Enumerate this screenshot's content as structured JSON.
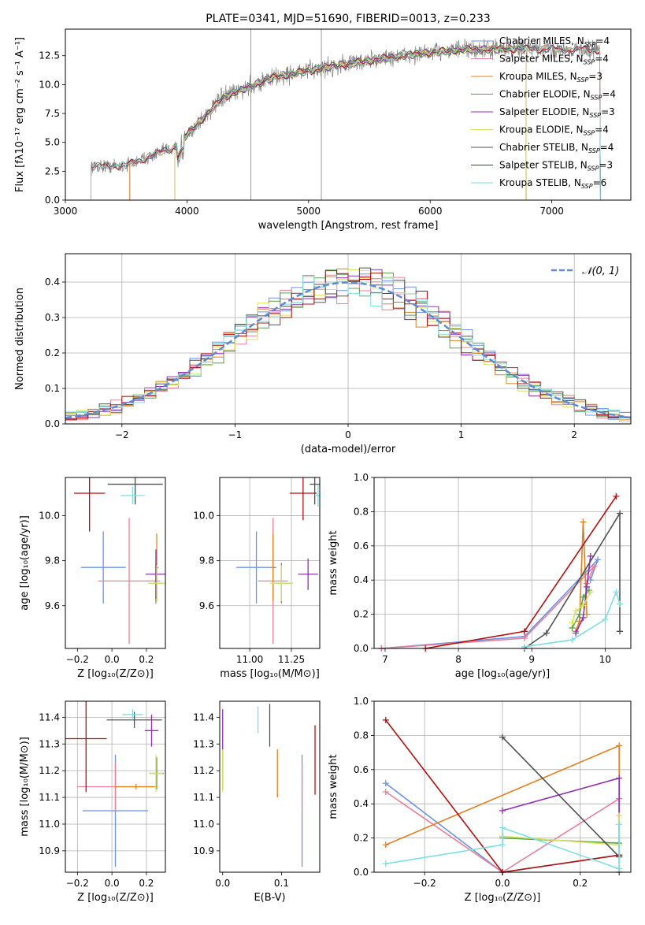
{
  "colors": {
    "palette": [
      "#6c94e0",
      "#e8809a",
      "#e08020",
      "#5a9e50",
      "#9030b0",
      "#d8e060",
      "#505050",
      "#b01010",
      "#80dde0",
      "#808080"
    ],
    "gauss": "#5b8bd6"
  },
  "chart_data": [
    {
      "type": "line",
      "title": "PLATE=0341, MJD=51690, FIBERID=0013, z=0.233",
      "xlabel": "wavelength [Angstrom, rest frame]",
      "ylabel": "Flux [fλ10⁻¹⁷ erg cm⁻² s⁻¹ A⁻¹]",
      "xlim": [
        3000,
        7650
      ],
      "ylim": [
        0,
        14.8
      ],
      "xticks": [
        "3000",
        "4000",
        "5000",
        "6000",
        "7000"
      ],
      "yticks": [
        "0.0",
        "2.5",
        "5.0",
        "7.5",
        "10.0",
        "12.5"
      ],
      "continuum": {
        "x": [
          3210,
          3500,
          3900,
          4300,
          4700,
          5200,
          5700,
          6200,
          6700,
          7400
        ],
        "y": [
          2.9,
          3.0,
          4.6,
          8.9,
          10.6,
          11.6,
          12.4,
          13.0,
          13.1,
          13.0
        ]
      },
      "series": [
        {
          "name": "Chabrier MILES, N_SSP=4",
          "start": 3530,
          "end": 7400
        },
        {
          "name": "Salpeter MILES, N_SSP=4",
          "start": 3530,
          "end": 7400
        },
        {
          "name": "Kroupa MILES, N_SSP=3",
          "start": 3530,
          "end": 7400
        },
        {
          "name": "Chabrier ELODIE, N_SSP=4",
          "start": 3900,
          "end": 6790
        },
        {
          "name": "Salpeter ELODIE, N_SSP=3",
          "start": 3900,
          "end": 6790
        },
        {
          "name": "Kroupa ELODIE, N_SSP=4",
          "start": 3900,
          "end": 6790
        },
        {
          "name": "Chabrier STELIB, N_SSP=4",
          "start": 3210,
          "end": 7400
        },
        {
          "name": "Salpeter STELIB, N_SSP=3",
          "start": 3210,
          "end": 7400
        },
        {
          "name": "Kroupa STELIB, N_SSP=6",
          "start": 3210,
          "end": 7400
        }
      ],
      "legend": "upper right"
    },
    {
      "type": "histogram",
      "xlabel": "(data-model)/error",
      "ylabel": "Normed distribution",
      "xlim": [
        -2.5,
        2.5
      ],
      "ylim": [
        0,
        0.48
      ],
      "xticks": [
        "−2",
        "−1",
        "0",
        "1",
        "2"
      ],
      "yticks": [
        "0.0",
        "0.1",
        "0.2",
        "0.3",
        "0.4"
      ],
      "bin_width": 0.1,
      "legend": {
        "label": "𝒩(0, 1)",
        "position": "upper right"
      },
      "reference_curve": "normal(0,1)"
    },
    {
      "type": "scatter",
      "xlabel": "Z [log₁₀(Z/Z⊙)]",
      "ylabel": "age  [log₁₀(age/yr)]",
      "xlim": [
        -0.27,
        0.31
      ],
      "ylim": [
        9.41,
        10.17
      ],
      "xticks": [
        "−0.2",
        "0.0",
        "0.2"
      ],
      "yticks": [
        "9.6",
        "9.8",
        "10.0"
      ],
      "points": [
        {
          "x": -0.05,
          "y": 9.77,
          "xerr": 0.13,
          "yerr": 0.16
        },
        {
          "x": 0.1,
          "y": 9.71,
          "xerr": 0.18,
          "yerr": 0.28
        },
        {
          "x": 0.26,
          "y": 9.77,
          "xerr": 0.01,
          "yerr": 0.15
        },
        {
          "x": 0.255,
          "y": 9.7,
          "xerr": 0.04,
          "yerr": 0.09
        },
        {
          "x": 0.255,
          "y": 9.74,
          "xerr": 0.06,
          "yerr": 0.11
        },
        {
          "x": 0.26,
          "y": 9.7,
          "xerr": 0.05,
          "yerr": 0.08
        },
        {
          "x": 0.135,
          "y": 10.14,
          "xerr": 0.16,
          "yerr": 0.09
        },
        {
          "x": -0.13,
          "y": 10.1,
          "xerr": 0.09,
          "yerr": 0.17
        },
        {
          "x": 0.12,
          "y": 10.09,
          "xerr": 0.07,
          "yerr": 0.04
        }
      ]
    },
    {
      "type": "scatter",
      "xlabel": "mass [log₁₀(M/M⊙)]",
      "ylabel": "",
      "xlim": [
        10.82,
        11.42
      ],
      "ylim": [
        9.41,
        10.17
      ],
      "xticks": [
        "11.00",
        "11.25"
      ],
      "yticks": [
        "9.6",
        "9.8",
        "10.0"
      ],
      "points": [
        {
          "x": 11.04,
          "y": 9.77,
          "xerr": 0.12,
          "yerr": 0.16
        },
        {
          "x": 11.14,
          "y": 9.71,
          "xerr": 0.09,
          "yerr": 0.28
        },
        {
          "x": 11.14,
          "y": 9.77,
          "xerr": 0.01,
          "yerr": 0.15
        },
        {
          "x": 11.19,
          "y": 9.7,
          "xerr": 0.06,
          "yerr": 0.09
        },
        {
          "x": 11.35,
          "y": 9.74,
          "xerr": 0.06,
          "yerr": 0.07
        },
        {
          "x": 11.19,
          "y": 9.7,
          "xerr": 0.07,
          "yerr": 0.08
        },
        {
          "x": 11.39,
          "y": 10.14,
          "xerr": 0.03,
          "yerr": 0.09
        },
        {
          "x": 11.32,
          "y": 10.1,
          "xerr": 0.08,
          "yerr": 0.12
        },
        {
          "x": 11.41,
          "y": 10.09,
          "xerr": 0.02,
          "yerr": 0.05
        }
      ]
    },
    {
      "type": "line",
      "xlabel": "age  [log₁₀(age/yr)]",
      "ylabel": "mass weight",
      "xlim": [
        6.85,
        10.35
      ],
      "ylim": [
        0,
        1
      ],
      "xticks": [
        "7",
        "8",
        "9",
        "10"
      ],
      "yticks": [
        "0.0",
        "0.2",
        "0.4",
        "0.6",
        "0.8",
        "1.0"
      ],
      "series": [
        {
          "x": [
            6.95,
            8.9,
            9.9,
            9.8
          ],
          "y": [
            0.0,
            0.07,
            0.52,
            0.4
          ]
        },
        {
          "x": [
            6.95,
            8.9,
            9.85,
            9.75
          ],
          "y": [
            0.0,
            0.06,
            0.48,
            0.38
          ]
        },
        {
          "x": [
            9.6,
            9.65,
            9.7,
            9.75
          ],
          "y": [
            0.1,
            0.16,
            0.74,
            0.2
          ]
        },
        {
          "x": [
            9.55,
            9.65,
            9.7,
            9.78
          ],
          "y": [
            0.12,
            0.2,
            0.3,
            0.34
          ]
        },
        {
          "x": [
            9.6,
            9.7,
            9.75,
            9.8
          ],
          "y": [
            0.09,
            0.18,
            0.36,
            0.54
          ]
        },
        {
          "x": [
            9.55,
            9.6,
            9.7,
            9.8
          ],
          "y": [
            0.15,
            0.22,
            0.25,
            0.33
          ]
        },
        {
          "x": [
            8.9,
            9.2,
            10.2,
            10.2
          ],
          "y": [
            0.0,
            0.09,
            0.79,
            0.1
          ]
        },
        {
          "x": [
            7.55,
            8.9,
            10.15
          ],
          "y": [
            0.0,
            0.1,
            0.89
          ]
        },
        {
          "x": [
            8.9,
            9.55,
            10.0,
            10.15,
            10.2
          ],
          "y": [
            0.01,
            0.05,
            0.17,
            0.33,
            0.26
          ]
        }
      ]
    },
    {
      "type": "scatter",
      "xlabel": "Z [log₁₀(Z/Z⊙)]",
      "ylabel": "mass [log₁₀(M/M⊙)]",
      "xlim": [
        -0.27,
        0.31
      ],
      "ylim": [
        10.82,
        11.46
      ],
      "xticks": [
        "−0.2",
        "0.0",
        "0.2"
      ],
      "yticks": [
        "10.9",
        "11.0",
        "11.1",
        "11.2",
        "11.3",
        "11.4"
      ],
      "points": [
        {
          "x": 0.02,
          "y": 11.05,
          "xerr": 0.19,
          "yerr": 0.21
        },
        {
          "x": 0.02,
          "y": 11.14,
          "xerr": 0.22,
          "yerr": 0.09
        },
        {
          "x": 0.14,
          "y": 11.14,
          "xerr": 0.12,
          "yerr": 0.01
        },
        {
          "x": 0.26,
          "y": 11.19,
          "xerr": 0.04,
          "yerr": 0.06
        },
        {
          "x": 0.23,
          "y": 11.35,
          "xerr": 0.04,
          "yerr": 0.06
        },
        {
          "x": 0.255,
          "y": 11.19,
          "xerr": 0.04,
          "yerr": 0.07
        },
        {
          "x": 0.13,
          "y": 11.39,
          "xerr": 0.16,
          "yerr": 0.03
        },
        {
          "x": -0.15,
          "y": 11.32,
          "xerr": 0.12,
          "yerr": 0.2
        },
        {
          "x": 0.12,
          "y": 11.41,
          "xerr": 0.06,
          "yerr": 0.02
        }
      ]
    },
    {
      "type": "scatter",
      "xlabel": "E(B-V)",
      "ylabel": "",
      "xlim": [
        -0.005,
        0.165
      ],
      "ylim": [
        10.82,
        11.46
      ],
      "xticks": [
        "0.0",
        "0.1"
      ],
      "yticks": [
        "10.9",
        "11.0",
        "11.1",
        "11.2",
        "11.3",
        "11.4"
      ],
      "points": [
        {
          "x": 0.135,
          "y": 11.05,
          "xerr": 0,
          "yerr": 0.21
        },
        {
          "x": 0.135,
          "y": 11.14,
          "xerr": 0,
          "yerr": 0.09
        },
        {
          "x": 0.093,
          "y": 11.19,
          "xerr": 0,
          "yerr": 0.09
        },
        {
          "x": 0.0,
          "y": 11.2,
          "xerr": 0,
          "yerr": 0.07
        },
        {
          "x": 0.0,
          "y": 11.35,
          "xerr": 0,
          "yerr": 0.08
        },
        {
          "x": 0.0,
          "y": 11.2,
          "xerr": 0,
          "yerr": 0.08
        },
        {
          "x": 0.08,
          "y": 11.37,
          "xerr": 0,
          "yerr": 0.08
        },
        {
          "x": 0.157,
          "y": 11.24,
          "xerr": 0,
          "yerr": 0.13
        },
        {
          "x": 0.06,
          "y": 11.39,
          "xerr": 0,
          "yerr": 0.05
        }
      ]
    },
    {
      "type": "line",
      "xlabel": "Z [log₁₀(Z/Z⊙)]",
      "ylabel": "mass weight",
      "xlim": [
        -0.33,
        0.33
      ],
      "ylim": [
        0,
        1
      ],
      "xticks": [
        "−0.2",
        "0.0",
        "0.2"
      ],
      "yticks": [
        "0.0",
        "0.2",
        "0.4",
        "0.6",
        "0.8",
        "1.0"
      ],
      "series": [
        {
          "x": [
            -0.3,
            0.0,
            0.3
          ],
          "y": [
            0.52,
            0.0,
            0.1
          ]
        },
        {
          "x": [
            -0.3,
            0.0,
            0.3,
            0.3
          ],
          "y": [
            0.47,
            0.0,
            0.43,
            0.1
          ]
        },
        {
          "x": [
            -0.3,
            0.3,
            0.3
          ],
          "y": [
            0.16,
            0.74,
            0.1
          ]
        },
        {
          "x": [
            0.0,
            0.3
          ],
          "y": [
            0.2,
            0.17
          ]
        },
        {
          "x": [
            0.0,
            0.3,
            0.3
          ],
          "y": [
            0.36,
            0.55,
            0.09
          ]
        },
        {
          "x": [
            0.0,
            0.3,
            0.3
          ],
          "y": [
            0.21,
            0.16,
            0.33
          ]
        },
        {
          "x": [
            0.0,
            0.3,
            0.3
          ],
          "y": [
            0.79,
            0.09,
            0.0
          ]
        },
        {
          "x": [
            -0.3,
            0.0,
            0.3
          ],
          "y": [
            0.89,
            0.0,
            0.1
          ]
        },
        {
          "x": [
            -0.3,
            0.0,
            0.0,
            0.3,
            0.3
          ],
          "y": [
            0.05,
            0.16,
            0.26,
            0.02,
            0.28
          ]
        }
      ]
    }
  ]
}
